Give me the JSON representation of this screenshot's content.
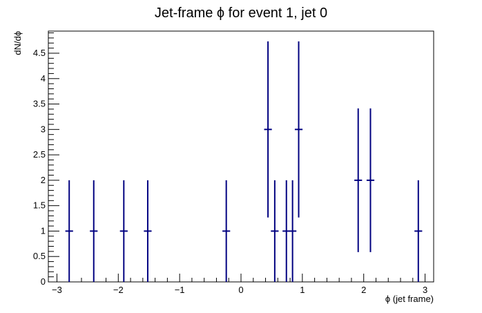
{
  "chart_data": {
    "type": "scatter",
    "title": "Jet-frame   ϕ for event 1, jet 0",
    "xlabel": "ϕ (jet frame)",
    "ylabel": "dN/dϕ",
    "xlim": [
      -3.14,
      3.14
    ],
    "ylim": [
      0,
      4.935
    ],
    "x_ticks": [
      -3,
      -2,
      -1,
      0,
      1,
      2,
      3
    ],
    "x_tick_labels": [
      "−3",
      "−2",
      "−1",
      "0",
      "1",
      "2",
      "3"
    ],
    "y_ticks": [
      0,
      0.5,
      1,
      1.5,
      2,
      2.5,
      3,
      3.5,
      4,
      4.5
    ],
    "y_tick_labels": [
      "0",
      "0.5",
      "1",
      "1.5",
      "2",
      "2.5",
      "3",
      "3.5",
      "4",
      "4.5"
    ],
    "grid": false,
    "legend": "none",
    "bin_width": 0.126,
    "marker_color": "#000080",
    "series": [
      {
        "points": [
          {
            "x": -2.8,
            "y": 1,
            "err": 1
          },
          {
            "x": -2.4,
            "y": 1,
            "err": 1
          },
          {
            "x": -1.91,
            "y": 1,
            "err": 1
          },
          {
            "x": -1.52,
            "y": 1,
            "err": 1
          },
          {
            "x": -0.24,
            "y": 1,
            "err": 1
          },
          {
            "x": 0.44,
            "y": 3,
            "err": 1.732
          },
          {
            "x": 0.55,
            "y": 1,
            "err": 1
          },
          {
            "x": 0.74,
            "y": 1,
            "err": 1
          },
          {
            "x": 0.84,
            "y": 1,
            "err": 1
          },
          {
            "x": 0.94,
            "y": 3,
            "err": 1.732
          },
          {
            "x": 1.91,
            "y": 2,
            "err": 1.414
          },
          {
            "x": 2.11,
            "y": 2,
            "err": 1.414
          },
          {
            "x": 2.89,
            "y": 1,
            "err": 1
          }
        ]
      }
    ]
  }
}
